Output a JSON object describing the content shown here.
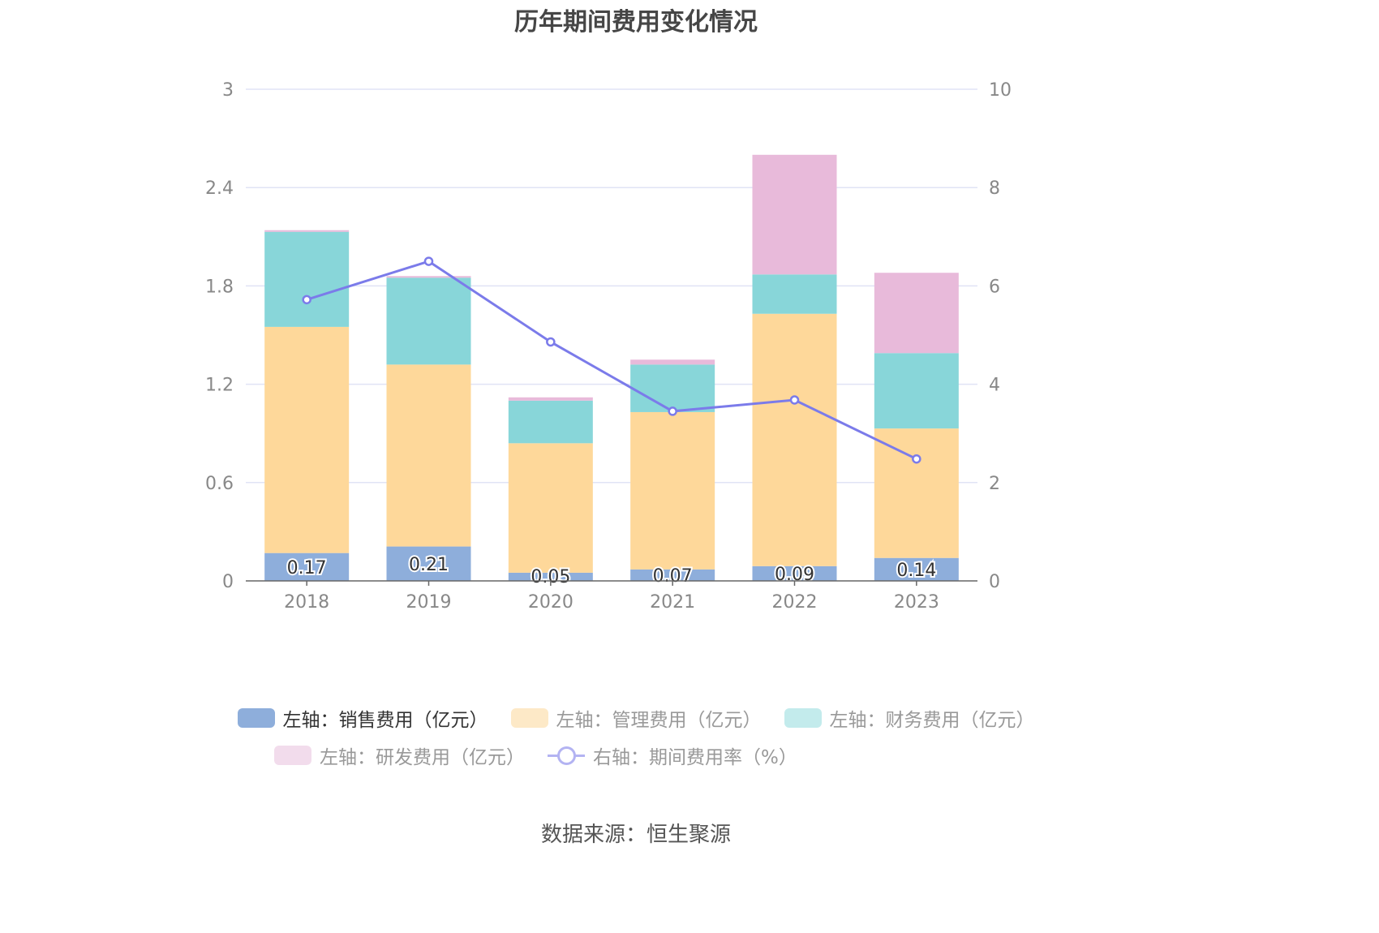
{
  "title": "历年期间费用变化情况",
  "source": "数据来源：恒生聚源",
  "chart_data": {
    "type": "bar",
    "stacked": true,
    "categories": [
      "2018",
      "2019",
      "2020",
      "2021",
      "2022",
      "2023"
    ],
    "series": [
      {
        "name": "左轴：销售费用（亿元）",
        "axis": "left",
        "color": "#8eaedb",
        "values": [
          0.17,
          0.21,
          0.05,
          0.07,
          0.09,
          0.14
        ]
      },
      {
        "name": "左轴：管理费用（亿元）",
        "axis": "left",
        "color": "#fed89a",
        "values": [
          1.38,
          1.11,
          0.79,
          0.96,
          1.54,
          0.79
        ]
      },
      {
        "name": "左轴：财务费用（亿元）",
        "axis": "left",
        "color": "#88d6d9",
        "values": [
          0.58,
          0.53,
          0.26,
          0.29,
          0.24,
          0.46
        ]
      },
      {
        "name": "左轴：研发费用（亿元）",
        "axis": "left",
        "color": "#e8bada",
        "values": [
          0.01,
          0.01,
          0.02,
          0.03,
          0.73,
          0.49
        ]
      },
      {
        "name": "右轴：期间费用率（%）",
        "axis": "right",
        "type": "line",
        "color": "#7b7bea",
        "values": [
          5.72,
          6.5,
          4.86,
          3.45,
          3.68,
          2.48
        ]
      }
    ],
    "bar_labels": [
      "0.17",
      "0.21",
      "0.05",
      "0.07",
      "0.09",
      "0.14"
    ],
    "left_axis": {
      "min": 0,
      "max": 3,
      "ticks": [
        "0",
        "0.6",
        "1.2",
        "1.8",
        "2.4",
        "3"
      ]
    },
    "right_axis": {
      "min": 0,
      "max": 10,
      "ticks": [
        "0",
        "2",
        "4",
        "6",
        "8",
        "10"
      ]
    },
    "grid": true,
    "legend_position": "bottom"
  },
  "legend": [
    {
      "label": "左轴：销售费用（亿元）",
      "color": "#8eaedb",
      "active": true
    },
    {
      "label": "左轴：管理费用（亿元）",
      "color": "#fde9c7",
      "active": false
    },
    {
      "label": "左轴：财务费用（亿元）",
      "color": "#c3ebec",
      "active": false
    },
    {
      "label": "左轴：研发费用（亿元）",
      "color": "#f2dcec",
      "active": false
    },
    {
      "label": "右轴：期间费用率（%）",
      "color": "#b3b3f2",
      "active": false,
      "line": true
    }
  ]
}
